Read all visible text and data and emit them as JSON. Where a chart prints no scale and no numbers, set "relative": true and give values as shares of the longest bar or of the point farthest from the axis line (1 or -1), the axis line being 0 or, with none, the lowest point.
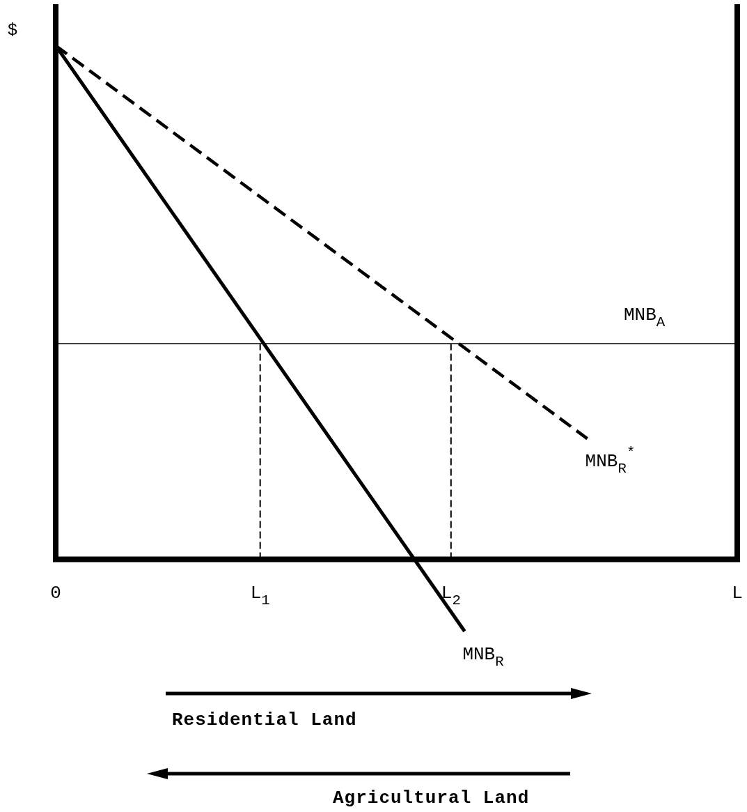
{
  "chart_data": {
    "type": "line",
    "relative": true,
    "ylabel": "$",
    "categories": [
      "0",
      null,
      null,
      null,
      null,
      null,
      null,
      null,
      null,
      null,
      null,
      null,
      null,
      null,
      null,
      "L$_{1}$",
      null,
      null,
      null,
      null,
      null,
      null,
      null,
      null,
      null,
      null,
      null,
      null,
      null,
      "L$_{2}$",
      null,
      null,
      null,
      null,
      null,
      null,
      null,
      null,
      null,
      null,
      null,
      null,
      null,
      null,
      null,
      null,
      null,
      null,
      null,
      null,
      "L"
    ],
    "grid": false,
    "legend": false,
    "annotations": [
      "Residential Land",
      "Agricultural Land"
    ],
    "series": [
      {
        "name": "MNB$_{R}$",
        "color": "#000000",
        "line_style": "solid",
        "values": [
          1,
          null,
          null,
          null,
          null,
          null,
          null,
          null,
          null,
          null,
          null,
          null,
          null,
          null,
          null,
          null,
          null,
          null,
          null,
          null,
          null,
          null,
          null,
          null,
          null,
          null,
          null,
          null,
          null,
          null,
          -0.14,
          null,
          null,
          null,
          null,
          null,
          null,
          null,
          null,
          null,
          null,
          null,
          null,
          null,
          null,
          null,
          null,
          null,
          null,
          null,
          null
        ]
      },
      {
        "name": "MNB$_{R}$$^{*}$",
        "color": "#000000",
        "line_style": "dashed",
        "values": [
          1,
          null,
          null,
          null,
          null,
          null,
          null,
          null,
          null,
          null,
          null,
          null,
          null,
          null,
          null,
          null,
          null,
          null,
          null,
          null,
          null,
          null,
          null,
          null,
          null,
          null,
          null,
          null,
          null,
          null,
          null,
          null,
          null,
          null,
          null,
          null,
          null,
          null,
          null,
          0.235,
          null,
          null,
          null,
          null,
          null,
          null,
          null,
          null,
          null,
          null,
          null
        ]
      },
      {
        "name": "MNB$_{A}$",
        "color": "#000000",
        "line_style": "solid",
        "values": [
          0.42,
          null,
          null,
          null,
          null,
          null,
          null,
          null,
          null,
          null,
          null,
          null,
          null,
          null,
          null,
          null,
          null,
          null,
          null,
          null,
          null,
          null,
          null,
          null,
          null,
          null,
          null,
          null,
          null,
          null,
          null,
          null,
          null,
          null,
          null,
          null,
          null,
          null,
          null,
          null,
          null,
          null,
          null,
          null,
          null,
          null,
          null,
          null,
          null,
          null,
          0.42
        ]
      },
      {
        "color": "#000000",
        "line_style": "dashed",
        "x": [
          "L$_{1}$",
          "L$_{1}$"
        ],
        "values": [
          0,
          0.42
        ]
      },
      {
        "color": "#000000",
        "line_style": "dashed",
        "x": [
          "L$_{2}$",
          "L$_{2}$"
        ],
        "values": [
          0,
          0.42
        ]
      }
    ]
  }
}
